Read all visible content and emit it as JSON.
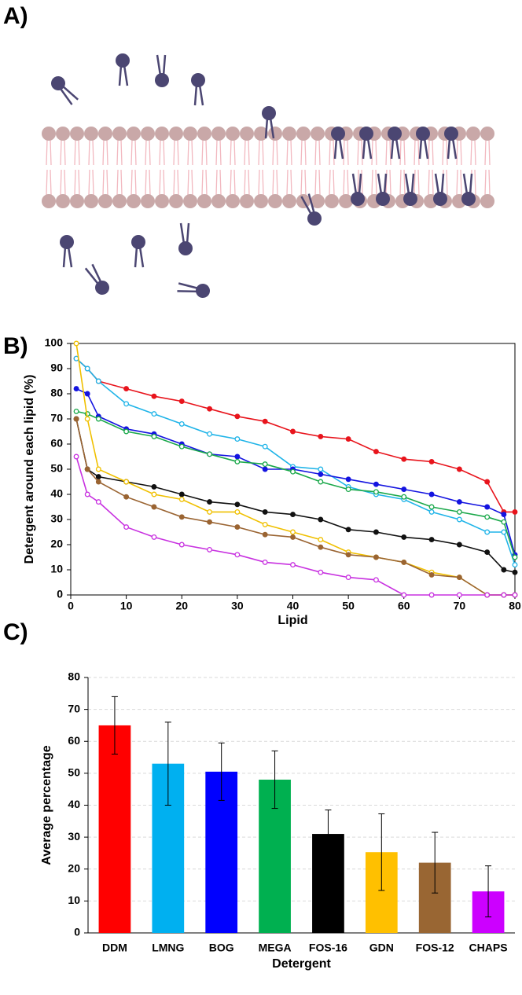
{
  "panel_labels": [
    "A)",
    "B)",
    "C)"
  ],
  "chart_data": [
    {
      "type": "line",
      "xlabel": "Lipid",
      "ylabel": "Detergent around each lipid (%)",
      "x": [
        1,
        3,
        5,
        10,
        15,
        20,
        25,
        30,
        35,
        40,
        45,
        50,
        55,
        60,
        65,
        70,
        75,
        78,
        80
      ],
      "xlim": [
        0,
        80
      ],
      "xticks": [
        0,
        10,
        20,
        30,
        40,
        50,
        60,
        70,
        80
      ],
      "ylim": [
        0,
        100
      ],
      "yticks": [
        0,
        10,
        20,
        30,
        40,
        50,
        60,
        70,
        80,
        90,
        100
      ],
      "series": [
        {
          "color": "#e8141c",
          "values": [
            94,
            90,
            85,
            82,
            79,
            77,
            74,
            71,
            69,
            65,
            63,
            62,
            57,
            54,
            53,
            50,
            45,
            33,
            33
          ]
        },
        {
          "color": "#1fb4e8",
          "values": [
            94,
            90,
            85,
            76,
            72,
            68,
            64,
            62,
            59,
            51,
            50,
            43,
            40,
            38,
            33,
            30,
            25,
            25,
            12
          ]
        },
        {
          "color": "#1414e0",
          "values": [
            82,
            80,
            71,
            66,
            64,
            60,
            56,
            55,
            50,
            50,
            48,
            46,
            44,
            42,
            40,
            37,
            35,
            32,
            16
          ]
        },
        {
          "color": "#1aa84a",
          "values": [
            73,
            72,
            70,
            65,
            63,
            59,
            56,
            53,
            52,
            49,
            45,
            42,
            41,
            39,
            35,
            33,
            31,
            29,
            15
          ]
        },
        {
          "color": "#111111",
          "values": [
            70,
            50,
            47,
            45,
            43,
            40,
            37,
            36,
            33,
            32,
            30,
            26,
            25,
            23,
            22,
            20,
            17,
            10,
            9
          ]
        },
        {
          "color": "#f0c000",
          "values": [
            100,
            70,
            50,
            45,
            40,
            38,
            33,
            33,
            28,
            25,
            22,
            17,
            15,
            13,
            9,
            7,
            0,
            0,
            0
          ]
        },
        {
          "color": "#9a6432",
          "values": [
            70,
            50,
            45,
            39,
            35,
            31,
            29,
            27,
            24,
            23,
            19,
            16,
            15,
            13,
            8,
            7,
            0,
            0,
            0
          ]
        },
        {
          "color": "#c832e0",
          "values": [
            55,
            40,
            37,
            27,
            23,
            20,
            18,
            16,
            13,
            12,
            9,
            7,
            6,
            0,
            0,
            0,
            0,
            0,
            0
          ]
        }
      ]
    },
    {
      "type": "bar",
      "xlabel": "Detergent",
      "ylabel": "Average percentage",
      "categories": [
        "DDM",
        "LMNG",
        "BOG",
        "MEGA",
        "FOS-16",
        "GDN",
        "FOS-12",
        "CHAPS"
      ],
      "values": [
        65,
        53,
        50.5,
        48,
        31,
        25.3,
        22,
        13
      ],
      "errors": [
        9,
        13,
        9,
        9,
        7.5,
        12,
        9.5,
        8
      ],
      "colors": [
        "#ff0000",
        "#00b0f0",
        "#0000ff",
        "#00b050",
        "#000000",
        "#ffc000",
        "#996633",
        "#cc00ff"
      ],
      "ylim": [
        0,
        80
      ],
      "yticks": [
        0,
        10,
        20,
        30,
        40,
        50,
        60,
        70,
        80
      ],
      "grid": true
    }
  ]
}
